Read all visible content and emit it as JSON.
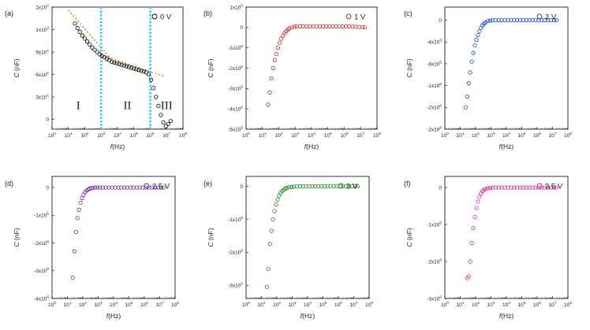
{
  "chart_data": [
    {
      "type": "scatter",
      "panel_label": "(a)",
      "legend": "0 V",
      "ylabel": "C (nF)",
      "xlabel": "f(Hz)",
      "x_scale": "log",
      "x_ticks": [
        {
          "value": 0,
          "label": "10^0"
        },
        {
          "value": 1,
          "label": "10^1"
        },
        {
          "value": 2,
          "label": "10^2"
        },
        {
          "value": 3,
          "label": "10^3"
        },
        {
          "value": 4,
          "label": "10^4"
        },
        {
          "value": 5,
          "label": "10^5"
        },
        {
          "value": 6,
          "label": "10^6"
        },
        {
          "value": 7,
          "label": "10^7"
        },
        {
          "value": 8,
          "label": "10^8"
        }
      ],
      "y_ticks": [
        {
          "value": 0,
          "label": "0"
        },
        {
          "value": 3,
          "label": "3x10^1"
        },
        {
          "value": 6,
          "label": "6x10^1"
        },
        {
          "value": 9,
          "label": "9x10^1"
        },
        {
          "value": 12,
          "label": "1x10^2"
        },
        {
          "value": 15,
          "label": "2x10^2"
        }
      ],
      "xlim": [
        0,
        8
      ],
      "ylim": [
        -1.3,
        15
      ],
      "marker_color": "#000000",
      "fit_color": "#d08a3a",
      "vlines": [
        3,
        6
      ],
      "vline_color": "#33ccff",
      "regions": [
        {
          "label": "I",
          "x": 1.6,
          "y": 1.4
        },
        {
          "label": "II",
          "x": 4.6,
          "y": 1.4
        },
        {
          "label": "III",
          "x": 7.0,
          "y": 1.4
        }
      ],
      "series": [
        {
          "x": [
            1.4,
            1.55,
            1.7,
            1.85,
            2.0,
            2.15,
            2.3,
            2.45,
            2.6,
            2.75,
            2.9,
            3.05,
            3.2,
            3.35,
            3.5,
            3.65,
            3.8,
            3.95,
            4.1,
            4.25,
            4.4,
            4.55,
            4.7,
            4.85,
            5.0,
            5.15,
            5.3,
            5.45,
            5.6,
            5.75,
            5.9,
            6.05,
            6.2,
            6.35,
            6.5,
            6.65,
            6.8,
            6.95,
            7.1,
            7.25
          ],
          "y": [
            12.8,
            12.2,
            11.7,
            11.2,
            10.8,
            10.4,
            10.0,
            9.6,
            9.3,
            9.0,
            8.7,
            8.5,
            8.3,
            8.1,
            7.9,
            7.7,
            7.6,
            7.5,
            7.4,
            7.3,
            7.2,
            7.1,
            7.0,
            6.9,
            6.8,
            6.7,
            6.6,
            6.5,
            6.4,
            6.3,
            6.0,
            5.3,
            4.2,
            3.0,
            1.8,
            0.6,
            -0.4,
            -0.9,
            -0.6,
            -0.2
          ]
        }
      ],
      "fits": [
        {
          "x": [
            1.0,
            3.6
          ],
          "y": [
            14.6,
            8.1
          ]
        },
        {
          "x": [
            3.0,
            6.8
          ],
          "y": [
            8.6,
            5.8
          ]
        }
      ]
    },
    {
      "type": "scatter",
      "panel_label": "(b)",
      "legend": "1 V",
      "ylabel": "C (nF)",
      "xlabel": "f(Hz)",
      "x_scale": "log",
      "x_ticks": [
        {
          "value": 0,
          "label": "10^0"
        },
        {
          "value": 1,
          "label": "10^1"
        },
        {
          "value": 2,
          "label": "10^2"
        },
        {
          "value": 3,
          "label": "10^3"
        },
        {
          "value": 4,
          "label": "10^4"
        },
        {
          "value": 5,
          "label": "10^5"
        },
        {
          "value": 6,
          "label": "10^6"
        },
        {
          "value": 7,
          "label": "10^7"
        },
        {
          "value": 8,
          "label": "10^8"
        }
      ],
      "y_ticks": [
        {
          "value": 1,
          "label": "1x10^5"
        },
        {
          "value": 0,
          "label": "0"
        },
        {
          "value": -1,
          "label": "-1x10^5"
        },
        {
          "value": -2,
          "label": "-2x10^5"
        },
        {
          "value": -3,
          "label": "-3x10^5"
        },
        {
          "value": -4,
          "label": "-4x10^5"
        },
        {
          "value": -5,
          "label": "-5x10^5"
        }
      ],
      "xlim": [
        0,
        8
      ],
      "ylim": [
        -5,
        1
      ],
      "marker_color": "#cc2222",
      "series": [
        {
          "x": [
            1.35,
            1.45,
            1.55,
            1.65,
            1.75,
            1.85,
            1.95,
            2.05,
            2.15,
            2.25,
            2.35,
            2.45,
            2.55,
            2.65,
            2.8,
            2.95,
            3.1,
            3.3,
            3.5,
            3.7,
            3.9,
            4.1,
            4.3,
            4.5,
            4.7,
            4.9,
            5.1,
            5.3,
            5.5,
            5.7,
            5.9,
            6.1,
            6.3,
            6.5,
            6.7,
            6.9,
            7.1,
            7.25
          ],
          "y": [
            -3.8,
            -3.2,
            -2.5,
            -2.0,
            -1.6,
            -1.3,
            -1.0,
            -0.75,
            -0.55,
            -0.4,
            -0.28,
            -0.18,
            -0.1,
            -0.05,
            0.0,
            0.04,
            0.05,
            0.06,
            0.06,
            0.05,
            0.05,
            0.05,
            0.05,
            0.05,
            0.05,
            0.05,
            0.05,
            0.05,
            0.05,
            0.05,
            0.05,
            0.05,
            0.05,
            0.04,
            0.04,
            0.03,
            0.02,
            0.0
          ]
        }
      ]
    },
    {
      "type": "scatter",
      "panel_label": "(c)",
      "legend": "2 V",
      "ylabel": "C (nF)",
      "xlabel": "f(Hz)",
      "x_scale": "log",
      "x_ticks": [
        {
          "value": 0,
          "label": "10^0"
        },
        {
          "value": 1,
          "label": "10^1"
        },
        {
          "value": 2,
          "label": "10^2"
        },
        {
          "value": 3,
          "label": "10^3"
        },
        {
          "value": 4,
          "label": "10^4"
        },
        {
          "value": 5,
          "label": "10^5"
        },
        {
          "value": 6,
          "label": "10^6"
        },
        {
          "value": 7,
          "label": "10^7"
        },
        {
          "value": 8,
          "label": "10^8"
        }
      ],
      "y_ticks": [
        {
          "value": 0,
          "label": "0"
        },
        {
          "value": -0.5,
          "label": "-4x10^5"
        },
        {
          "value": -1,
          "label": "-8x10^5"
        },
        {
          "value": -1.5,
          "label": "-1x10^6"
        },
        {
          "value": -2,
          "label": "-2x10^6"
        },
        {
          "value": -2.5,
          "label": "-2x10^6"
        }
      ],
      "xlim": [
        0,
        8
      ],
      "ylim": [
        -2.5,
        0.3
      ],
      "marker_color": "#1a3fcc",
      "series": [
        {
          "x": [
            1.35,
            1.45,
            1.55,
            1.65,
            1.75,
            1.85,
            1.95,
            2.05,
            2.15,
            2.25,
            2.35,
            2.45,
            2.55,
            2.65,
            2.8,
            2.95,
            3.1,
            3.3,
            3.5,
            3.7,
            3.9,
            4.1,
            4.3,
            4.5,
            4.7,
            4.9,
            5.1,
            5.3,
            5.5,
            5.7,
            5.9,
            6.1,
            6.3,
            6.5,
            6.7,
            6.9,
            7.1,
            7.25
          ],
          "y": [
            -2.0,
            -1.75,
            -1.45,
            -1.2,
            -0.95,
            -0.75,
            -0.58,
            -0.45,
            -0.34,
            -0.25,
            -0.18,
            -0.12,
            -0.08,
            -0.05,
            -0.02,
            -0.01,
            0.0,
            0.0,
            0.0,
            0.0,
            0.0,
            0.0,
            0.0,
            0.0,
            0.0,
            0.0,
            0.0,
            0.0,
            0.0,
            0.0,
            0.0,
            0.0,
            0.0,
            0.0,
            0.0,
            0.0,
            0.0,
            0.0
          ]
        }
      ]
    },
    {
      "type": "scatter",
      "panel_label": "(d)",
      "legend": "2.5 V",
      "ylabel": "C (nF)",
      "xlabel": "f(Hz)",
      "x_scale": "log",
      "x_ticks": [
        {
          "value": 0,
          "label": "10^0"
        },
        {
          "value": 1,
          "label": "10^1"
        },
        {
          "value": 2,
          "label": "10^2"
        },
        {
          "value": 3,
          "label": "10^3"
        },
        {
          "value": 4,
          "label": "10^4"
        },
        {
          "value": 5,
          "label": "10^5"
        },
        {
          "value": 6,
          "label": "10^6"
        },
        {
          "value": 7,
          "label": "10^7"
        },
        {
          "value": 8,
          "label": "10^8"
        }
      ],
      "y_ticks": [
        {
          "value": 0,
          "label": "0"
        },
        {
          "value": -1,
          "label": "-1x10^5"
        },
        {
          "value": -2,
          "label": "-2x10^5"
        },
        {
          "value": -3,
          "label": "-3x10^5"
        },
        {
          "value": -4,
          "label": "-4x10^5"
        }
      ],
      "xlim": [
        0,
        8
      ],
      "ylim": [
        -4,
        0.4
      ],
      "marker_color": "#7a1fa0",
      "series": [
        {
          "x": [
            1.35,
            1.45,
            1.55,
            1.65,
            1.75,
            1.85,
            1.95,
            2.05,
            2.15,
            2.25,
            2.35,
            2.45,
            2.55,
            2.65,
            2.8,
            2.95,
            3.1,
            3.3,
            3.5,
            3.7,
            3.9,
            4.1,
            4.3,
            4.5,
            4.7,
            4.9,
            5.1,
            5.3,
            5.5,
            5.7,
            5.9,
            6.1,
            6.3,
            6.5,
            6.7,
            6.9,
            7.1,
            7.25
          ],
          "y": [
            -3.25,
            -2.3,
            -1.6,
            -1.1,
            -0.8,
            -0.55,
            -0.38,
            -0.26,
            -0.17,
            -0.11,
            -0.07,
            -0.04,
            -0.02,
            -0.01,
            0.0,
            0.0,
            0.0,
            0.0,
            0.0,
            0.0,
            0.0,
            0.0,
            0.0,
            0.0,
            0.0,
            0.0,
            0.0,
            0.0,
            0.0,
            0.0,
            0.0,
            0.0,
            0.0,
            0.0,
            0.0,
            0.0,
            0.0,
            0.0
          ]
        }
      ]
    },
    {
      "type": "scatter",
      "panel_label": "(e)",
      "legend": "3 V",
      "ylabel": "C (nF)",
      "xlabel": "f(Hz)",
      "x_scale": "log",
      "x_ticks": [
        {
          "value": 0,
          "label": "10^0"
        },
        {
          "value": 1,
          "label": "10^1"
        },
        {
          "value": 2,
          "label": "10^2"
        },
        {
          "value": 3,
          "label": "10^3"
        },
        {
          "value": 4,
          "label": "10^4"
        },
        {
          "value": 5,
          "label": "10^5"
        },
        {
          "value": 6,
          "label": "10^6"
        },
        {
          "value": 7,
          "label": "10^7"
        },
        {
          "value": 8,
          "label": "10^8"
        }
      ],
      "y_ticks": [
        {
          "value": 0,
          "label": "0"
        },
        {
          "value": -1,
          "label": "-1x10^5"
        },
        {
          "value": -2,
          "label": "-2x10^5"
        },
        {
          "value": -3,
          "label": "-3x10^5"
        }
      ],
      "xlim": [
        0,
        8
      ],
      "ylim": [
        -3.4,
        0.3
      ],
      "marker_color": "#1a8a1a",
      "series": [
        {
          "x": [
            1.35,
            1.45,
            1.55,
            1.65,
            1.75,
            1.85,
            1.95,
            2.05,
            2.15,
            2.25,
            2.35,
            2.45,
            2.55,
            2.65,
            2.8,
            2.95,
            3.1,
            3.3,
            3.5,
            3.7,
            3.9,
            4.1,
            4.3,
            4.5,
            4.7,
            4.9,
            5.1,
            5.3,
            5.5,
            5.7,
            5.9,
            6.1,
            6.3,
            6.5,
            6.7,
            6.9,
            7.1,
            7.25
          ],
          "y": [
            -3.05,
            -2.5,
            -1.75,
            -1.35,
            -1.0,
            -0.75,
            -0.55,
            -0.4,
            -0.28,
            -0.2,
            -0.14,
            -0.1,
            -0.07,
            -0.05,
            -0.03,
            -0.02,
            -0.01,
            0.0,
            0.0,
            0.0,
            0.0,
            0.0,
            0.0,
            0.0,
            0.0,
            0.0,
            0.0,
            0.0,
            0.0,
            0.0,
            0.0,
            0.0,
            0.0,
            0.0,
            0.0,
            0.0,
            0.0,
            0.0
          ]
        }
      ]
    },
    {
      "type": "scatter",
      "panel_label": "(f)",
      "legend": "3.5 V",
      "ylabel": "C (nF)",
      "xlabel": "f(Hz)",
      "x_scale": "log",
      "x_ticks": [
        {
          "value": 0,
          "label": "10^0"
        },
        {
          "value": 1,
          "label": "10^1"
        },
        {
          "value": 2,
          "label": "10^2"
        },
        {
          "value": 3,
          "label": "10^3"
        },
        {
          "value": 4,
          "label": "10^4"
        },
        {
          "value": 5,
          "label": "10^5"
        },
        {
          "value": 6,
          "label": "10^6"
        },
        {
          "value": 7,
          "label": "10^7"
        },
        {
          "value": 8,
          "label": "10^8"
        }
      ],
      "y_ticks": [
        {
          "value": 0,
          "label": "0"
        },
        {
          "value": -1,
          "label": "-1x10^5"
        },
        {
          "value": -2,
          "label": "-2x10^5"
        },
        {
          "value": -3,
          "label": "-3x10^5"
        }
      ],
      "xlim": [
        0,
        8
      ],
      "ylim": [
        -3,
        0.3
      ],
      "marker_color": "#cc2299",
      "series": [
        {
          "x": [
            1.45,
            1.55,
            1.65,
            1.75,
            1.85,
            1.95,
            2.05,
            2.15,
            2.25,
            2.35,
            2.45,
            2.55,
            2.65,
            2.8,
            2.95,
            3.1,
            3.3,
            3.5,
            3.7,
            3.9,
            4.1,
            4.3,
            4.5,
            4.7,
            4.9,
            5.1,
            5.3,
            5.5,
            5.7,
            5.9,
            6.1,
            6.3,
            6.5,
            6.7,
            6.9,
            7.1,
            7.25
          ],
          "y": [
            -2.45,
            -2.4,
            -2.0,
            -1.5,
            -1.1,
            -0.8,
            -0.55,
            -0.38,
            -0.25,
            -0.16,
            -0.1,
            -0.06,
            -0.04,
            -0.02,
            -0.01,
            0.0,
            0.0,
            0.0,
            0.0,
            0.0,
            0.0,
            0.0,
            0.0,
            0.0,
            0.0,
            0.0,
            0.0,
            0.0,
            0.0,
            0.0,
            0.0,
            0.0,
            0.0,
            0.0,
            0.0,
            0.0,
            0.0
          ]
        }
      ]
    }
  ]
}
